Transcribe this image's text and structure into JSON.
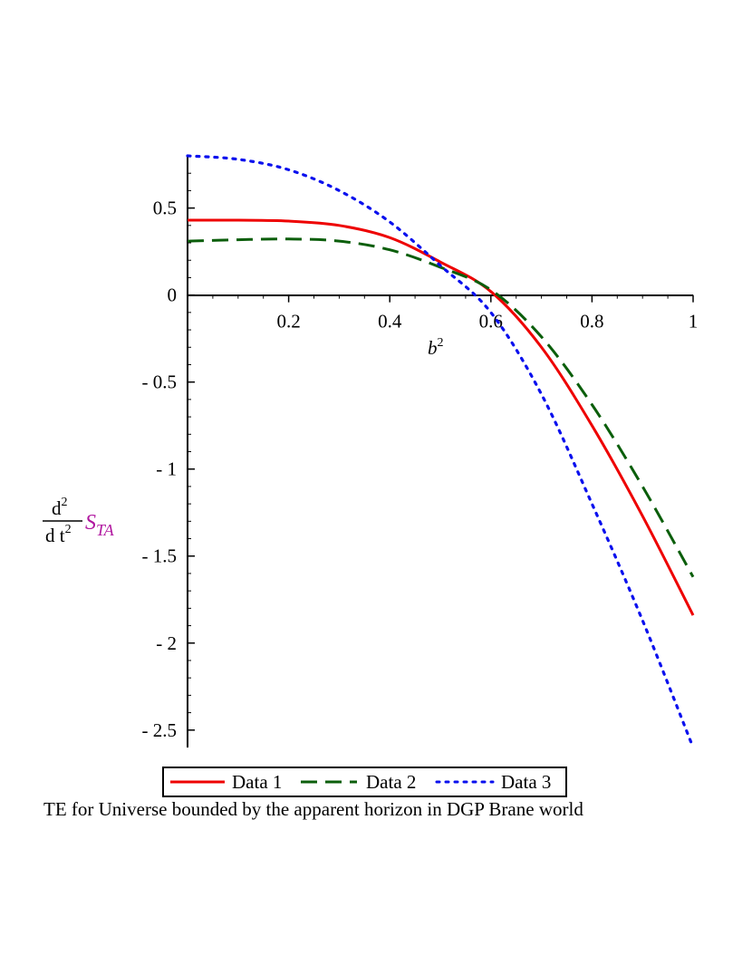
{
  "chart_data": {
    "type": "line",
    "title": "",
    "caption": "TE for Universe bounded by the apparent horizon in DGP Brane world",
    "xlabel": "b",
    "xlabel_sup": "2",
    "ylabel_d": "d",
    "ylabel_d_sup": "2",
    "ylabel_dt": "d t",
    "ylabel_dt_sup": "2",
    "ylabel_S": "S",
    "ylabel_sub": "TA",
    "xlim": [
      0,
      1
    ],
    "ylim": [
      -2.6,
      0.8
    ],
    "xticks": [
      {
        "value": 0.2,
        "label": "0.2"
      },
      {
        "value": 0.4,
        "label": "0.4"
      },
      {
        "value": 0.6,
        "label": "0.6"
      },
      {
        "value": 0.8,
        "label": "0.8"
      },
      {
        "value": 1.0,
        "label": "1"
      }
    ],
    "yticks": [
      {
        "value": 0.5,
        "label": "0.5"
      },
      {
        "value": 0,
        "label": "0"
      },
      {
        "value": -0.5,
        "label": "- 0.5"
      },
      {
        "value": -1,
        "label": "- 1"
      },
      {
        "value": -1.5,
        "label": "- 1.5"
      },
      {
        "value": -2,
        "label": "- 2"
      },
      {
        "value": -2.5,
        "label": "- 2.5"
      }
    ],
    "series": [
      {
        "name": "Data 1",
        "color": "#ee0000",
        "dash": "solid",
        "x": [
          0,
          0.1,
          0.2,
          0.3,
          0.4,
          0.5,
          0.6,
          0.7,
          0.8,
          0.9,
          1.0
        ],
        "y": [
          0.43,
          0.43,
          0.425,
          0.4,
          0.33,
          0.19,
          0.02,
          -0.3,
          -0.75,
          -1.27,
          -1.84
        ]
      },
      {
        "name": "Data 2",
        "color": "#0b5e0b",
        "dash": "dashed",
        "x": [
          0,
          0.1,
          0.2,
          0.3,
          0.4,
          0.5,
          0.6,
          0.7,
          0.8,
          0.9,
          1.0
        ],
        "y": [
          0.31,
          0.318,
          0.322,
          0.31,
          0.26,
          0.16,
          0.03,
          -0.24,
          -0.63,
          -1.1,
          -1.62
        ]
      },
      {
        "name": "Data 3",
        "color": "#0a10ee",
        "dash": "dotted",
        "x": [
          0,
          0.1,
          0.2,
          0.3,
          0.4,
          0.5,
          0.6,
          0.7,
          0.8,
          0.9,
          1.0
        ],
        "y": [
          0.8,
          0.78,
          0.72,
          0.6,
          0.42,
          0.17,
          -0.1,
          -0.57,
          -1.2,
          -1.87,
          -2.6
        ]
      }
    ],
    "legend": {
      "position": "bottom"
    }
  }
}
